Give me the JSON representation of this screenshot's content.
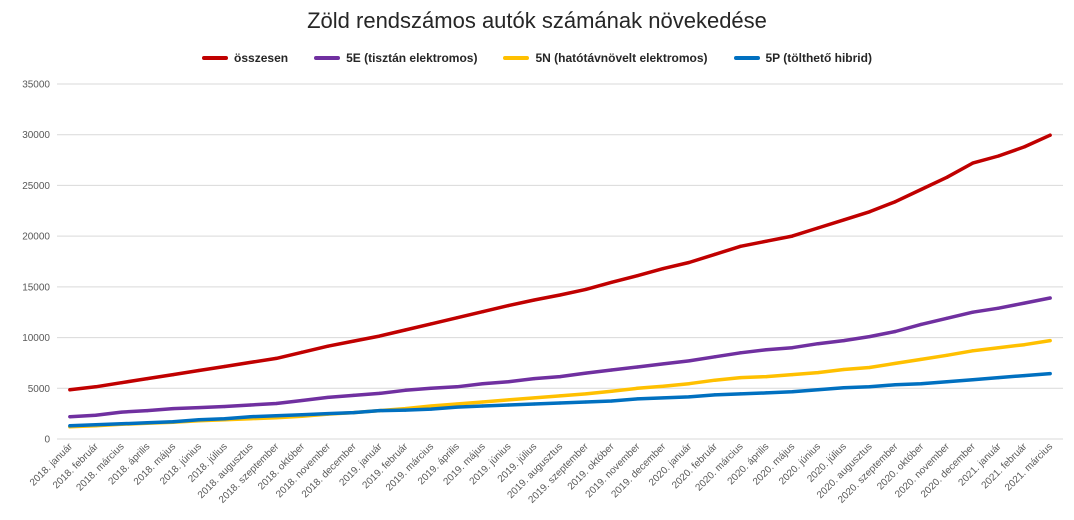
{
  "chart_data": {
    "type": "line",
    "title": "Zöld rendszámos autók számának növekedése",
    "xlabel": "",
    "ylabel": "",
    "ylim": [
      0,
      35000
    ],
    "yticks": [
      0,
      5000,
      10000,
      15000,
      20000,
      25000,
      30000,
      35000
    ],
    "grid": true,
    "legend_position": "top",
    "categories": [
      "2018. január",
      "2018. február",
      "2018. március",
      "2018. április",
      "2018. május",
      "2018. június",
      "2018. július",
      "2018. augusztus",
      "2018. szeptember",
      "2018. október",
      "2018. november",
      "2018. december",
      "2019. január",
      "2019. február",
      "2019. március",
      "2019. április",
      "2019. május",
      "2019. június",
      "2019. július",
      "2019. augusztus",
      "2019. szeptember",
      "2019. október",
      "2019. november",
      "2019. december",
      "2020. január",
      "2020. február",
      "2020. március",
      "2020. április",
      "2020. május",
      "2020. június",
      "2020. július",
      "2020. augusztus",
      "2020. szeptember",
      "2020. október",
      "2020. november",
      "2020. december",
      "2021. január",
      "2021. február",
      "2021. március"
    ],
    "series": [
      {
        "name": "összesen",
        "color": "#c00000",
        "values": [
          4850,
          5150,
          5550,
          5950,
          6350,
          6750,
          7150,
          7550,
          7950,
          8550,
          9150,
          9650,
          10150,
          10750,
          11350,
          11950,
          12550,
          13150,
          13700,
          14200,
          14750,
          15450,
          16100,
          16800,
          17400,
          18200,
          19000,
          19500,
          20000,
          20800,
          21600,
          22400,
          23400,
          24600,
          25800,
          27200,
          27900,
          28800,
          29950
        ]
      },
      {
        "name": "5E (tisztán elektromos)",
        "color": "#7030a0",
        "values": [
          2200,
          2350,
          2650,
          2800,
          3000,
          3100,
          3200,
          3350,
          3500,
          3800,
          4100,
          4300,
          4500,
          4800,
          5000,
          5150,
          5450,
          5650,
          5950,
          6150,
          6500,
          6800,
          7100,
          7400,
          7700,
          8100,
          8500,
          8800,
          9000,
          9400,
          9700,
          10100,
          10600,
          11300,
          11900,
          12500,
          12900,
          13400,
          13900
        ]
      },
      {
        "name": "5N (hatótávnövelt elektromos)",
        "color": "#ffc000",
        "values": [
          1200,
          1300,
          1450,
          1550,
          1650,
          1800,
          1900,
          2000,
          2100,
          2250,
          2450,
          2600,
          2800,
          3000,
          3250,
          3450,
          3650,
          3850,
          4050,
          4250,
          4450,
          4700,
          5000,
          5200,
          5450,
          5800,
          6050,
          6150,
          6350,
          6550,
          6850,
          7050,
          7450,
          7850,
          8250,
          8700,
          9000,
          9300,
          9700
        ]
      },
      {
        "name": "5P (tölthető hibrid)",
        "color": "#0070c0",
        "values": [
          1300,
          1400,
          1500,
          1600,
          1700,
          1900,
          2000,
          2200,
          2300,
          2400,
          2500,
          2600,
          2800,
          2850,
          2950,
          3150,
          3250,
          3350,
          3450,
          3550,
          3650,
          3750,
          3950,
          4050,
          4150,
          4350,
          4450,
          4550,
          4650,
          4850,
          5050,
          5150,
          5350,
          5450,
          5650,
          5850,
          6050,
          6250,
          6450
        ]
      }
    ]
  }
}
